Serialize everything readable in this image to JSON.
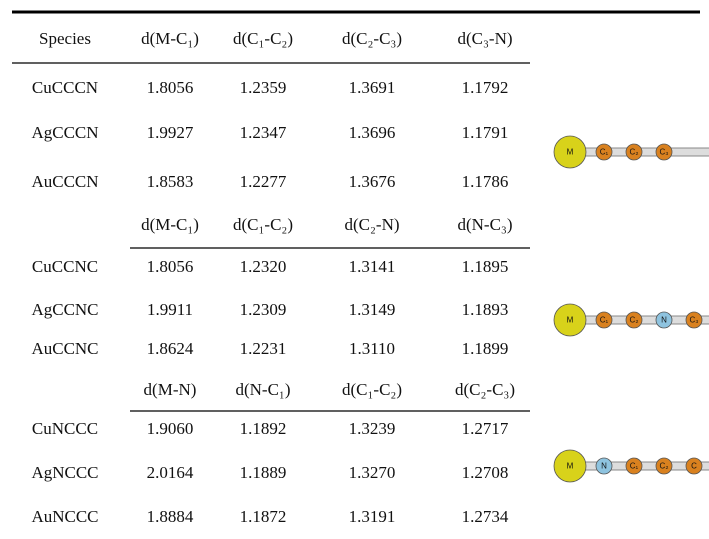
{
  "header": [
    "Species",
    "d(M-C₁)",
    "d(C₁-C₂)",
    "d(C₂-C₃)",
    "d(C₃-N)"
  ],
  "sections": [
    {
      "rows": [
        [
          "CuCCCN",
          "1.8056",
          "1.2359",
          "1.3691",
          "1.1792"
        ],
        [
          "AgCCCN",
          "1.9927",
          "1.2347",
          "1.3696",
          "1.1791"
        ],
        [
          "AuCCCN",
          "1.8583",
          "1.2277",
          "1.3676",
          "1.1786"
        ]
      ],
      "molecule": [
        "M",
        "C₁",
        "C₂",
        "C₃"
      ]
    },
    {
      "header": [
        "d(M-C₁)",
        "d(C₁-C₂)",
        "d(C₂-N)",
        "d(N-C₃)"
      ],
      "rows": [
        [
          "CuCCNC",
          "1.8056",
          "1.2320",
          "1.3141",
          "1.1895"
        ],
        [
          "AgCCNC",
          "1.9911",
          "1.2309",
          "1.3149",
          "1.1893"
        ],
        [
          "AuCCNC",
          "1.8624",
          "1.2231",
          "1.3110",
          "1.1899"
        ]
      ],
      "molecule": [
        "M",
        "C₁",
        "C₂",
        "N",
        "C₃"
      ]
    },
    {
      "header": [
        "d(M-N)",
        "d(N-C₁)",
        "d(C₁-C₂)",
        "d(C₂-C₃)"
      ],
      "rows": [
        [
          "CuNCCC",
          "1.9060",
          "1.1892",
          "1.3239",
          "1.2717"
        ],
        [
          "AgNCCC",
          "2.0164",
          "1.1889",
          "1.3270",
          "1.2708"
        ],
        [
          "AuNCCC",
          "1.8884",
          "1.1872",
          "1.3191",
          "1.2734"
        ]
      ],
      "molecule": [
        "M",
        "N",
        "C₁",
        "C₂",
        "C"
      ]
    }
  ]
}
